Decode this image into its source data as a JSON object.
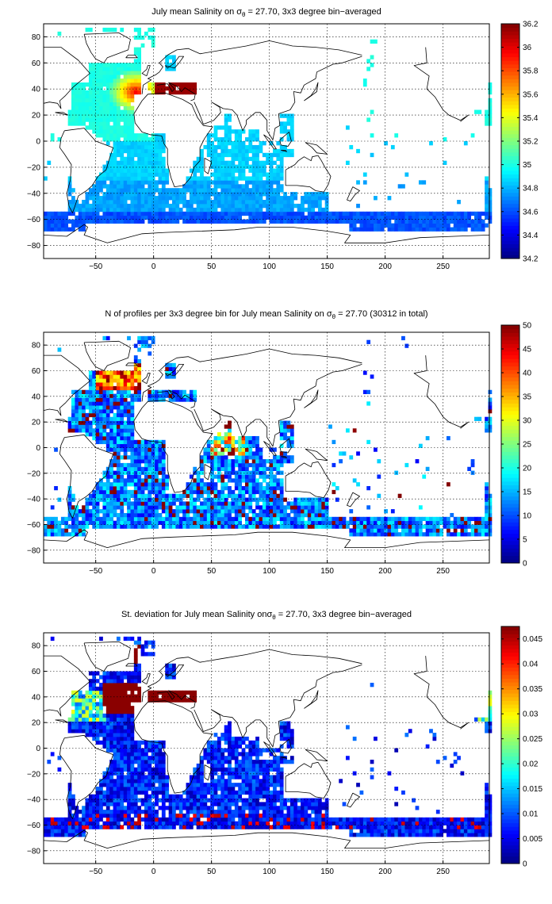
{
  "panels": [
    {
      "title_pre": "July mean Salinity on σ",
      "title_sub": "θ",
      "title_post": " = 27.70, 3x3 degree bin−averaged",
      "colorbar": {
        "min": 34.2,
        "max": 36.2,
        "ticks": [
          "34.2",
          "34.4",
          "34.6",
          "34.8",
          "35",
          "35.2",
          "35.4",
          "35.6",
          "35.8",
          "36",
          "36.2"
        ]
      },
      "field": "salinity"
    },
    {
      "title_pre": "N of profiles per 3x3 degree bin for July mean Salinity on σ",
      "title_sub": "θ",
      "title_post": " = 27.70 (30312 in total)",
      "colorbar": {
        "min": 0,
        "max": 50,
        "ticks": [
          "0",
          "5",
          "10",
          "15",
          "20",
          "25",
          "30",
          "35",
          "40",
          "45",
          "50"
        ]
      },
      "field": "count"
    },
    {
      "title_pre": "St. deviation for July mean Salinity onσ",
      "title_sub": "θ",
      "title_post": " = 27.70, 3x3 degree bin−averaged",
      "colorbar": {
        "min": 0,
        "max": 0.0475,
        "ticks": [
          "0",
          "0.005",
          "0.01",
          "0.015",
          "0.02",
          "0.025",
          "0.03",
          "0.035",
          "0.04",
          "0.045"
        ]
      },
      "field": "std"
    }
  ],
  "map_axes": {
    "lon_range": [
      -95,
      290
    ],
    "lat_range": [
      -90,
      90
    ],
    "x_ticks": [
      "-50",
      "0",
      "50",
      "100",
      "150",
      "200",
      "250"
    ],
    "y_ticks": [
      "80",
      "60",
      "40",
      "20",
      "0",
      "-20",
      "-40",
      "-60",
      "-80"
    ]
  },
  "colors": {
    "colormap": "jet",
    "coast": "#000000",
    "grid": "#000000"
  }
}
